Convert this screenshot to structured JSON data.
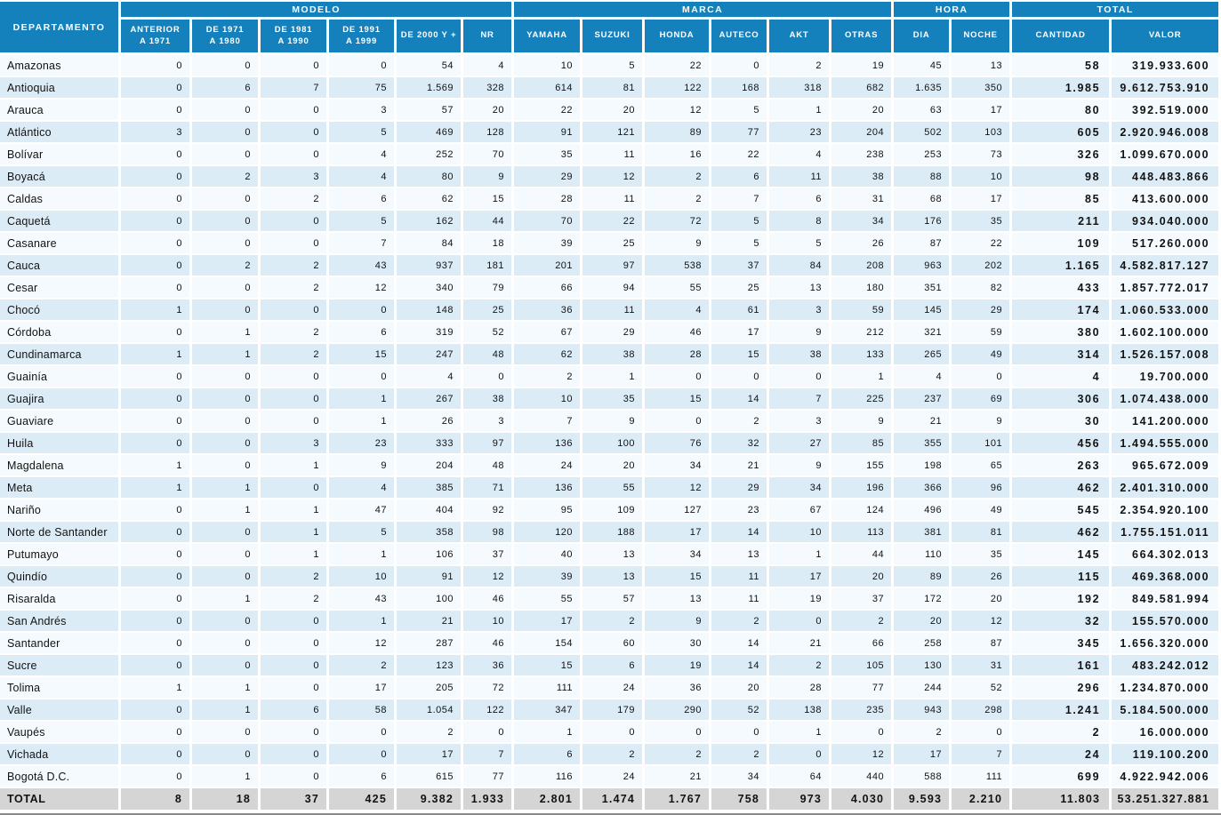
{
  "colors": {
    "header_blue": "#1581bc",
    "row_light": "#f4fafd",
    "row_pale_blue": "#dcecf7",
    "total_gray": "#d5d5d5",
    "grid_white": "#ffffff",
    "text_dark": "#121212",
    "bottom_rule": "#8a8a8a"
  },
  "header": {
    "departamento": "DEPARTAMENTO",
    "groups": [
      {
        "label": "MODELO",
        "span": 6
      },
      {
        "label": "MARCA",
        "span": 6
      },
      {
        "label": "HORA",
        "span": 2
      },
      {
        "label": "TOTAL",
        "span": 2
      }
    ],
    "columns": [
      "ANTERIOR\nA 1971",
      "DE 1971\nA 1980",
      "DE 1981\nA 1990",
      "DE 1991\nA 1999",
      "DE 2000 Y +",
      "NR",
      "YAMAHA",
      "SUZUKI",
      "HONDA",
      "AUTECO",
      "AKT",
      "OTRAS",
      "DIA",
      "NOCHE",
      "CANTIDAD",
      "VALOR"
    ],
    "column_keys": [
      "anterior-1971",
      "de-1971-1980",
      "de-1981-1990",
      "de-1991-1999",
      "de-2000-y-mas",
      "nr",
      "yamaha",
      "suzuki",
      "honda",
      "auteco",
      "akt",
      "otras",
      "dia",
      "noche",
      "cantidad",
      "valor"
    ]
  },
  "rows": [
    {
      "name": "Amazonas",
      "values": [
        "0",
        "0",
        "0",
        "0",
        "54",
        "4",
        "10",
        "5",
        "22",
        "0",
        "2",
        "19",
        "45",
        "13",
        "58",
        "319.933.600"
      ]
    },
    {
      "name": "Antioquia",
      "values": [
        "0",
        "6",
        "7",
        "75",
        "1.569",
        "328",
        "614",
        "81",
        "122",
        "168",
        "318",
        "682",
        "1.635",
        "350",
        "1.985",
        "9.612.753.910"
      ]
    },
    {
      "name": "Arauca",
      "values": [
        "0",
        "0",
        "0",
        "3",
        "57",
        "20",
        "22",
        "20",
        "12",
        "5",
        "1",
        "20",
        "63",
        "17",
        "80",
        "392.519.000"
      ]
    },
    {
      "name": "Atlántico",
      "values": [
        "3",
        "0",
        "0",
        "5",
        "469",
        "128",
        "91",
        "121",
        "89",
        "77",
        "23",
        "204",
        "502",
        "103",
        "605",
        "2.920.946.008"
      ]
    },
    {
      "name": "Bolívar",
      "values": [
        "0",
        "0",
        "0",
        "4",
        "252",
        "70",
        "35",
        "11",
        "16",
        "22",
        "4",
        "238",
        "253",
        "73",
        "326",
        "1.099.670.000"
      ]
    },
    {
      "name": "Boyacá",
      "values": [
        "0",
        "2",
        "3",
        "4",
        "80",
        "9",
        "29",
        "12",
        "2",
        "6",
        "11",
        "38",
        "88",
        "10",
        "98",
        "448.483.866"
      ]
    },
    {
      "name": "Caldas",
      "values": [
        "0",
        "0",
        "2",
        "6",
        "62",
        "15",
        "28",
        "11",
        "2",
        "7",
        "6",
        "31",
        "68",
        "17",
        "85",
        "413.600.000"
      ]
    },
    {
      "name": "Caquetá",
      "values": [
        "0",
        "0",
        "0",
        "5",
        "162",
        "44",
        "70",
        "22",
        "72",
        "5",
        "8",
        "34",
        "176",
        "35",
        "211",
        "934.040.000"
      ]
    },
    {
      "name": "Casanare",
      "values": [
        "0",
        "0",
        "0",
        "7",
        "84",
        "18",
        "39",
        "25",
        "9",
        "5",
        "5",
        "26",
        "87",
        "22",
        "109",
        "517.260.000"
      ]
    },
    {
      "name": "Cauca",
      "values": [
        "0",
        "2",
        "2",
        "43",
        "937",
        "181",
        "201",
        "97",
        "538",
        "37",
        "84",
        "208",
        "963",
        "202",
        "1.165",
        "4.582.817.127"
      ]
    },
    {
      "name": "Cesar",
      "values": [
        "0",
        "0",
        "2",
        "12",
        "340",
        "79",
        "66",
        "94",
        "55",
        "25",
        "13",
        "180",
        "351",
        "82",
        "433",
        "1.857.772.017"
      ]
    },
    {
      "name": "Chocó",
      "values": [
        "1",
        "0",
        "0",
        "0",
        "148",
        "25",
        "36",
        "11",
        "4",
        "61",
        "3",
        "59",
        "145",
        "29",
        "174",
        "1.060.533.000"
      ]
    },
    {
      "name": "Córdoba",
      "values": [
        "0",
        "1",
        "2",
        "6",
        "319",
        "52",
        "67",
        "29",
        "46",
        "17",
        "9",
        "212",
        "321",
        "59",
        "380",
        "1.602.100.000"
      ]
    },
    {
      "name": "Cundinamarca",
      "values": [
        "1",
        "1",
        "2",
        "15",
        "247",
        "48",
        "62",
        "38",
        "28",
        "15",
        "38",
        "133",
        "265",
        "49",
        "314",
        "1.526.157.008"
      ]
    },
    {
      "name": "Guainía",
      "values": [
        "0",
        "0",
        "0",
        "0",
        "4",
        "0",
        "2",
        "1",
        "0",
        "0",
        "0",
        "1",
        "4",
        "0",
        "4",
        "19.700.000"
      ]
    },
    {
      "name": "Guajira",
      "values": [
        "0",
        "0",
        "0",
        "1",
        "267",
        "38",
        "10",
        "35",
        "15",
        "14",
        "7",
        "225",
        "237",
        "69",
        "306",
        "1.074.438.000"
      ]
    },
    {
      "name": "Guaviare",
      "values": [
        "0",
        "0",
        "0",
        "1",
        "26",
        "3",
        "7",
        "9",
        "0",
        "2",
        "3",
        "9",
        "21",
        "9",
        "30",
        "141.200.000"
      ]
    },
    {
      "name": "Huila",
      "values": [
        "0",
        "0",
        "3",
        "23",
        "333",
        "97",
        "136",
        "100",
        "76",
        "32",
        "27",
        "85",
        "355",
        "101",
        "456",
        "1.494.555.000"
      ]
    },
    {
      "name": "Magdalena",
      "values": [
        "1",
        "0",
        "1",
        "9",
        "204",
        "48",
        "24",
        "20",
        "34",
        "21",
        "9",
        "155",
        "198",
        "65",
        "263",
        "965.672.009"
      ]
    },
    {
      "name": "Meta",
      "values": [
        "1",
        "1",
        "0",
        "4",
        "385",
        "71",
        "136",
        "55",
        "12",
        "29",
        "34",
        "196",
        "366",
        "96",
        "462",
        "2.401.310.000"
      ]
    },
    {
      "name": "Nariño",
      "values": [
        "0",
        "1",
        "1",
        "47",
        "404",
        "92",
        "95",
        "109",
        "127",
        "23",
        "67",
        "124",
        "496",
        "49",
        "545",
        "2.354.920.100"
      ]
    },
    {
      "name": "Norte de Santander",
      "values": [
        "0",
        "0",
        "1",
        "5",
        "358",
        "98",
        "120",
        "188",
        "17",
        "14",
        "10",
        "113",
        "381",
        "81",
        "462",
        "1.755.151.011"
      ]
    },
    {
      "name": "Putumayo",
      "values": [
        "0",
        "0",
        "1",
        "1",
        "106",
        "37",
        "40",
        "13",
        "34",
        "13",
        "1",
        "44",
        "110",
        "35",
        "145",
        "664.302.013"
      ]
    },
    {
      "name": "Quindío",
      "values": [
        "0",
        "0",
        "2",
        "10",
        "91",
        "12",
        "39",
        "13",
        "15",
        "11",
        "17",
        "20",
        "89",
        "26",
        "115",
        "469.368.000"
      ]
    },
    {
      "name": "Risaralda",
      "values": [
        "0",
        "1",
        "2",
        "43",
        "100",
        "46",
        "55",
        "57",
        "13",
        "11",
        "19",
        "37",
        "172",
        "20",
        "192",
        "849.581.994"
      ]
    },
    {
      "name": "San Andrés",
      "values": [
        "0",
        "0",
        "0",
        "1",
        "21",
        "10",
        "17",
        "2",
        "9",
        "2",
        "0",
        "2",
        "20",
        "12",
        "32",
        "155.570.000"
      ]
    },
    {
      "name": "Santander",
      "values": [
        "0",
        "0",
        "0",
        "12",
        "287",
        "46",
        "154",
        "60",
        "30",
        "14",
        "21",
        "66",
        "258",
        "87",
        "345",
        "1.656.320.000"
      ]
    },
    {
      "name": "Sucre",
      "values": [
        "0",
        "0",
        "0",
        "2",
        "123",
        "36",
        "15",
        "6",
        "19",
        "14",
        "2",
        "105",
        "130",
        "31",
        "161",
        "483.242.012"
      ]
    },
    {
      "name": "Tolima",
      "values": [
        "1",
        "1",
        "0",
        "17",
        "205",
        "72",
        "111",
        "24",
        "36",
        "20",
        "28",
        "77",
        "244",
        "52",
        "296",
        "1.234.870.000"
      ]
    },
    {
      "name": "Valle",
      "values": [
        "0",
        "1",
        "6",
        "58",
        "1.054",
        "122",
        "347",
        "179",
        "290",
        "52",
        "138",
        "235",
        "943",
        "298",
        "1.241",
        "5.184.500.000"
      ]
    },
    {
      "name": "Vaupés",
      "values": [
        "0",
        "0",
        "0",
        "0",
        "2",
        "0",
        "1",
        "0",
        "0",
        "0",
        "1",
        "0",
        "2",
        "0",
        "2",
        "16.000.000"
      ]
    },
    {
      "name": "Vichada",
      "values": [
        "0",
        "0",
        "0",
        "0",
        "17",
        "7",
        "6",
        "2",
        "2",
        "2",
        "0",
        "12",
        "17",
        "7",
        "24",
        "119.100.200"
      ]
    },
    {
      "name": "Bogotá D.C.",
      "values": [
        "0",
        "1",
        "0",
        "6",
        "615",
        "77",
        "116",
        "24",
        "21",
        "34",
        "64",
        "440",
        "588",
        "111",
        "699",
        "4.922.942.006"
      ]
    }
  ],
  "total_row": {
    "label": "TOTAL",
    "values": [
      "8",
      "18",
      "37",
      "425",
      "9.382",
      "1.933",
      "2.801",
      "1.474",
      "1.767",
      "758",
      "973",
      "4.030",
      "9.593",
      "2.210",
      "11.803",
      "53.251.327.881"
    ]
  }
}
